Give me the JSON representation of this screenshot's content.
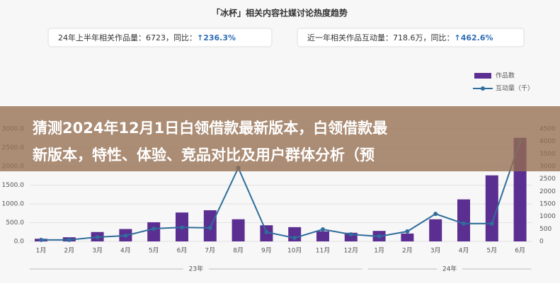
{
  "header": {
    "title": "「冰杯」相关内容社媒讨论热度趋势",
    "stats": [
      {
        "label": "24年上半年相关作品量：",
        "value": "6723",
        "sep": "，同比：",
        "change": "↑236.3%"
      },
      {
        "label": "近一年相关作品互动量：",
        "value": "718.6万",
        "sep": "，同比：",
        "change": "↑462.6%"
      }
    ]
  },
  "overlay": {
    "lines": [
      "猜测2024年12月1日白领借款最新版本，白领借款最",
      "新版本，特性、体验、竞品对比及用户群体分析（预"
    ]
  },
  "chart_data": {
    "type": "bar-line",
    "categories": [
      "1月",
      "2月",
      "3月",
      "4月",
      "5月",
      "6月",
      "7月",
      "8月",
      "9月",
      "10月",
      "11月",
      "12月",
      "1月",
      "2月",
      "3月",
      "4月",
      "5月",
      "6月"
    ],
    "groups": [
      {
        "label": "23年",
        "count": 12
      },
      {
        "label": "24年",
        "count": 6
      }
    ],
    "series": [
      {
        "name": "作品数",
        "type": "bar",
        "color": "#5b2e91",
        "values": [
          70,
          110,
          250,
          330,
          510,
          770,
          830,
          590,
          430,
          380,
          270,
          230,
          280,
          210,
          590,
          1120,
          1760,
          2760
        ]
      },
      {
        "name": "互动量（千）",
        "type": "line",
        "axis": "y2",
        "color": "#2f6d9c",
        "values": [
          60,
          60,
          170,
          230,
          510,
          560,
          540,
          2940,
          370,
          140,
          480,
          280,
          200,
          400,
          1100,
          710,
          710,
          4000
        ]
      }
    ],
    "ylim": [
      0,
      3000
    ],
    "yticks": [
      {
        "value": 0,
        "label": "0.0"
      },
      {
        "value": 500,
        "label": "500.0"
      },
      {
        "value": 1000,
        "label": "1000.0"
      },
      {
        "value": 1500,
        "label": "1500.0"
      },
      {
        "value": 2000,
        "label": "2000.0"
      },
      {
        "value": 2500,
        "label": "2500.0"
      },
      {
        "value": 3000,
        "label": "3000.0"
      }
    ],
    "y2lim": [
      0,
      4500
    ],
    "y2ticks": [
      0,
      500,
      1000,
      1500,
      2000,
      2500,
      3000,
      3500,
      4000,
      4500
    ],
    "grid": true
  }
}
